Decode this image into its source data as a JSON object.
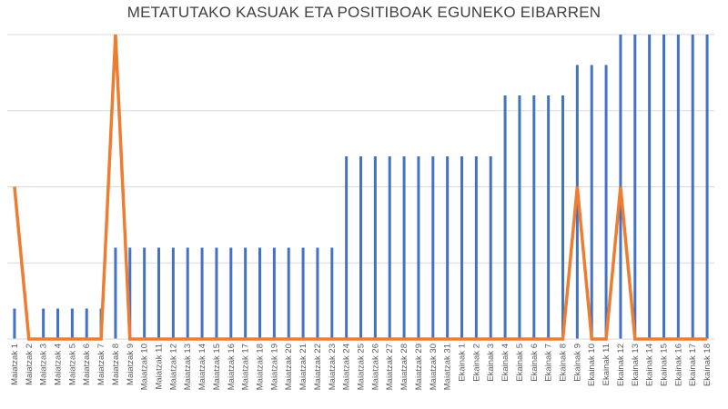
{
  "chart_data": {
    "type": "bar",
    "title": "METATUTAKO KASUAK ETA POSITIBOAK EGUNEKO EIBARREN",
    "xlabel": "",
    "ylabel": "",
    "ylim": [
      0,
      20
    ],
    "grid": true,
    "legend": "none",
    "categories": [
      "Maiatzak 1",
      "Maiatzak 2",
      "Maiatzak 3",
      "Maiatzak 4",
      "Maiatzak 5",
      "Maiatzak 6",
      "Maiatzak 7",
      "Maiatzak 8",
      "Maiatzak 9",
      "Maiatzak 10",
      "Maiatzak 11",
      "Maiatzak 12",
      "Maiatzak 13",
      "Maiatzak 14",
      "Maiatzak 15",
      "Maiatzak 16",
      "Maiatzak 17",
      "Maiatzak 18",
      "Maiatzak 19",
      "Maiatzak 20",
      "Maiatzak 21",
      "Maiatzak 22",
      "Maiatzak 23",
      "Maiatzak 24",
      "Maiatzak 25",
      "Maiatzak 26",
      "Maiatzak 27",
      "Maiatzak 28",
      "Maiatzak 29",
      "Maiatzak 30",
      "Maiatzak 31",
      "Ekainak 1",
      "Ekainak 2",
      "Ekainak 3",
      "Ekainak 4",
      "Ekainak 5",
      "Ekainak 6",
      "Ekainak 7",
      "Ekainak 8",
      "Ekainak 9",
      "Ekainak 10",
      "Ekainak 11",
      "Ekainak 12",
      "Ekainak 13",
      "Ekainak 14",
      "Ekainak 15",
      "Ekainak 16",
      "Ekainak 17",
      "Ekainak 18"
    ],
    "series": [
      {
        "type": "bar",
        "color": "#4472C4",
        "values": [
          2,
          0,
          2,
          2,
          2,
          2,
          2,
          6,
          6,
          6,
          6,
          6,
          6,
          6,
          6,
          6,
          6,
          6,
          6,
          6,
          6,
          6,
          6,
          12,
          12,
          12,
          12,
          12,
          12,
          12,
          12,
          12,
          12,
          12,
          16,
          16,
          16,
          16,
          16,
          18,
          18,
          18,
          20,
          20,
          20,
          20,
          20,
          20,
          20
        ]
      },
      {
        "type": "line",
        "color": "#ED7D31",
        "values": [
          10,
          0,
          0,
          0,
          0,
          0,
          0,
          20,
          0,
          0,
          0,
          0,
          0,
          0,
          0,
          0,
          0,
          0,
          0,
          0,
          0,
          0,
          0,
          0,
          0,
          0,
          0,
          0,
          0,
          0,
          0,
          0,
          0,
          0,
          0,
          0,
          0,
          0,
          0,
          10,
          0,
          0,
          10,
          0,
          0,
          0,
          0,
          0,
          0
        ]
      }
    ]
  }
}
